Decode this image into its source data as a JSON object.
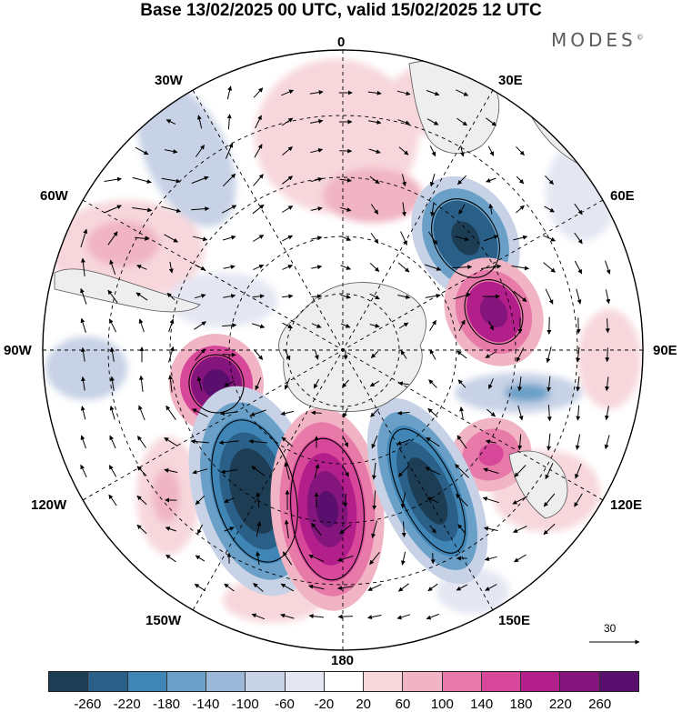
{
  "title": "Base 13/02/2025 00 UTC, valid 15/02/2025 12 UTC",
  "brand": "MODES",
  "brand_mark": "©",
  "longitude_labels": {
    "lon_0": "0",
    "lon_30e": "30E",
    "lon_60e": "60E",
    "lon_90e": "90E",
    "lon_120e": "120E",
    "lon_150e": "150E",
    "lon_180": "180",
    "lon_150w": "150W",
    "lon_120w": "120W",
    "lon_90w": "90W",
    "lon_60w": "60W",
    "lon_30w": "30W"
  },
  "vector_reference": "30",
  "colorbar": {
    "ticks": [
      "-260",
      "-220",
      "-180",
      "-140",
      "-100",
      "-60",
      "-20",
      "20",
      "60",
      "100",
      "140",
      "180",
      "220",
      "260"
    ],
    "colors": [
      "#1d3d55",
      "#2a5f88",
      "#3f86b6",
      "#6aa0c8",
      "#9cb8d8",
      "#c7d2e6",
      "#e4e6f2",
      "#ffffff",
      "#f7d7dc",
      "#f0b4c4",
      "#e87aaa",
      "#d8489a",
      "#b31f8a",
      "#83157c",
      "#5a0f6e"
    ]
  }
}
